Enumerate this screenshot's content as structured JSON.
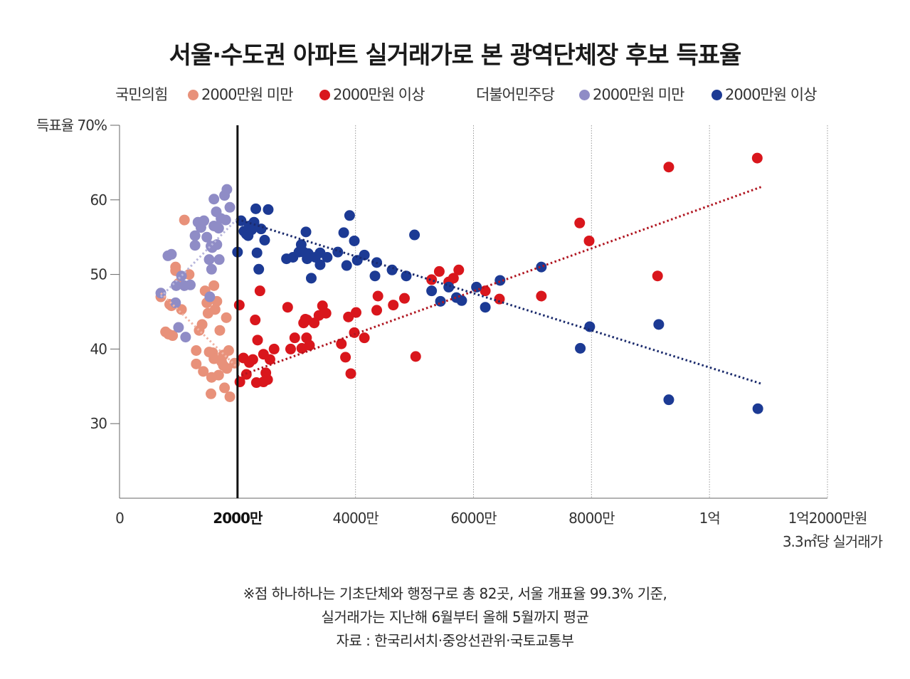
{
  "title": "서울·수도권 아파트 실거래가로 본 광역단체장 후보 득표율",
  "legend": {
    "groups": [
      {
        "party": "국민의힘",
        "items": [
          {
            "label": "2000만원 미만",
            "color": "#e8917a"
          },
          {
            "label": "2000만원 이상",
            "color": "#d9161c"
          }
        ]
      },
      {
        "party": "더불어민주당",
        "items": [
          {
            "label": "2000만원 미만",
            "color": "#8f8cc6"
          },
          {
            "label": "2000만원 이상",
            "color": "#1c3a94"
          }
        ]
      }
    ]
  },
  "notes": {
    "line1": "※점 하나하나는 기초단체와 행정구로 총 82곳, 서울 개표율 99.3% 기준,",
    "line2": "실거래가는 지난해 6월부터 올해 5월까지 평균",
    "source": "자료 : 한국리서치·중앙선관위·국토교통부"
  },
  "chart_data": {
    "type": "scatter",
    "title": "서울·수도권 아파트 실거래가로 본 광역단체장 후보 득표율",
    "ylabel": "득표율",
    "xlabel": "3.3㎡당 실거래가",
    "xlim": [
      0,
      12000
    ],
    "ylim": [
      20,
      70
    ],
    "x_ticks": [
      {
        "value": 0,
        "label": "0"
      },
      {
        "value": 2000,
        "label": "2000만",
        "bold": true
      },
      {
        "value": 4000,
        "label": "4000만"
      },
      {
        "value": 6000,
        "label": "6000만"
      },
      {
        "value": 8000,
        "label": "8000만"
      },
      {
        "value": 10000,
        "label": "1억"
      },
      {
        "value": 12000,
        "label": "1억2000만원"
      }
    ],
    "y_ticks": [
      {
        "value": 30,
        "label": "30"
      },
      {
        "value": 40,
        "label": "40"
      },
      {
        "value": 50,
        "label": "50"
      },
      {
        "value": 60,
        "label": "60"
      },
      {
        "value": 70,
        "label": "득표율 70%"
      }
    ],
    "threshold_x": 2000,
    "grid": "vertical dotted",
    "legend_position": "top",
    "series": [
      {
        "name": "국민의힘 2000만원 미만",
        "color": "#e8917a",
        "x": [
          700,
          780,
          850,
          900,
          950,
          1000,
          1050,
          1100,
          1180,
          830,
          880,
          950,
          1300,
          1350,
          1420,
          1500,
          1550,
          1580,
          1620,
          1680,
          1730,
          1780,
          1820,
          1870,
          1300,
          1450,
          1600,
          1520,
          1650,
          1700,
          1760,
          1810,
          1480,
          1560,
          1760,
          1850,
          1600,
          1400,
          1950
        ],
        "y": [
          47.0,
          42.3,
          46.0,
          41.8,
          51.0,
          48.8,
          45.3,
          57.3,
          50.0,
          42.0,
          45.8,
          50.5,
          39.8,
          42.5,
          37.0,
          44.8,
          34.0,
          39.5,
          45.3,
          36.5,
          38.3,
          34.8,
          37.4,
          33.6,
          38.0,
          47.8,
          48.5,
          39.6,
          46.4,
          42.5,
          37.8,
          44.2,
          46.2,
          36.2,
          39.2,
          39.8,
          38.7,
          43.3,
          38.1
        ]
      },
      {
        "name": "국민의힘 2000만원 이상",
        "color": "#d9161c",
        "x": [
          2040,
          2100,
          2150,
          2200,
          2260,
          2320,
          2340,
          2380,
          2440,
          2480,
          2510,
          2550,
          2620,
          2850,
          2900,
          2970,
          3090,
          3120,
          3150,
          3170,
          3180,
          3220,
          3300,
          3380,
          3440,
          3500,
          3760,
          3830,
          3880,
          3920,
          3980,
          4010,
          4150,
          4360,
          4380,
          4640,
          4830,
          5020,
          5290,
          5420,
          5580,
          5660,
          5750,
          6200,
          6440,
          7150,
          7800,
          7960,
          9120,
          9310,
          10810,
          2030,
          2300,
          2440
        ],
        "y": [
          35.6,
          38.8,
          36.6,
          38.2,
          38.6,
          35.5,
          41.2,
          47.8,
          39.3,
          36.8,
          35.9,
          38.6,
          40.0,
          45.6,
          40.0,
          41.5,
          40.1,
          43.5,
          44.0,
          41.5,
          43.9,
          40.5,
          43.5,
          44.5,
          45.8,
          44.8,
          40.7,
          38.9,
          44.3,
          36.7,
          42.2,
          44.9,
          41.5,
          45.2,
          47.1,
          45.9,
          46.8,
          39.0,
          49.3,
          50.4,
          49.0,
          49.5,
          50.6,
          47.8,
          46.7,
          47.1,
          56.9,
          54.5,
          49.8,
          64.4,
          65.6,
          45.9,
          43.9,
          35.6
        ]
      },
      {
        "name": "더불어민주당 2000만원 미만",
        "color": "#8f8cc6",
        "x": [
          700,
          820,
          880,
          950,
          1000,
          1050,
          1120,
          1200,
          1280,
          1330,
          1380,
          1430,
          1480,
          1520,
          1570,
          1600,
          1640,
          1690,
          1720,
          1780,
          1820,
          1870,
          1530,
          1600,
          1560,
          1680,
          1800,
          1550,
          960,
          1100,
          1280,
          1650
        ],
        "y": [
          47.5,
          52.5,
          52.7,
          46.2,
          42.9,
          49.8,
          41.6,
          48.6,
          53.9,
          57.0,
          56.3,
          57.2,
          55.0,
          52.0,
          53.6,
          60.1,
          58.4,
          52.0,
          57.5,
          60.6,
          61.4,
          59.0,
          47.0,
          56.5,
          50.7,
          56.2,
          57.3,
          53.8,
          48.5,
          48.5,
          55.2,
          54.0
        ]
      },
      {
        "name": "더불어민주당 2000만원 이상",
        "color": "#1c3a94",
        "x": [
          2000,
          2060,
          2110,
          2150,
          2200,
          2240,
          2280,
          2310,
          2330,
          2360,
          2400,
          2460,
          2520,
          2830,
          2940,
          3040,
          3080,
          3120,
          3160,
          3200,
          3250,
          3320,
          3400,
          3520,
          3700,
          3800,
          3850,
          3900,
          3980,
          4030,
          4150,
          4330,
          4360,
          4620,
          4860,
          5000,
          5290,
          5440,
          5580,
          5710,
          5800,
          6050,
          6200,
          6450,
          7150,
          7810,
          7970,
          9140,
          9310,
          10820,
          2180,
          3180,
          3400
        ],
        "y": [
          53.0,
          57.2,
          55.8,
          55.4,
          56.5,
          56.0,
          57.0,
          58.8,
          52.9,
          50.7,
          56.1,
          54.6,
          58.7,
          52.1,
          52.3,
          53.0,
          54.0,
          53.0,
          55.7,
          52.8,
          49.5,
          52.3,
          51.3,
          52.3,
          53.0,
          55.6,
          51.2,
          57.9,
          54.5,
          51.9,
          52.6,
          49.8,
          51.6,
          50.6,
          49.8,
          55.3,
          47.8,
          46.4,
          48.3,
          46.9,
          46.5,
          48.3,
          45.6,
          49.2,
          51.0,
          40.1,
          43.0,
          43.3,
          33.2,
          32.0,
          55.2,
          52.1,
          52.9
        ]
      }
    ],
    "trend_lines": [
      {
        "name": "국민의힘 2000만원 미만 추세",
        "color": "#f0b3a3",
        "x": [
          700,
          2000
        ],
        "y": [
          47.5,
          37.5
        ]
      },
      {
        "name": "국민의힘 2000만원 이상 추세",
        "color": "#b01520",
        "x": [
          2000,
          10900
        ],
        "y": [
          36.3,
          61.8
        ]
      },
      {
        "name": "더불어민주당 2000만원 미만 추세",
        "color": "#b8b6dc",
        "x": [
          700,
          2000
        ],
        "y": [
          47.0,
          57.5
        ]
      },
      {
        "name": "더불어민주당 2000만원 이상 추세",
        "color": "#1a2a6c",
        "x": [
          2000,
          10900
        ],
        "y": [
          57.4,
          35.3
        ]
      }
    ]
  }
}
